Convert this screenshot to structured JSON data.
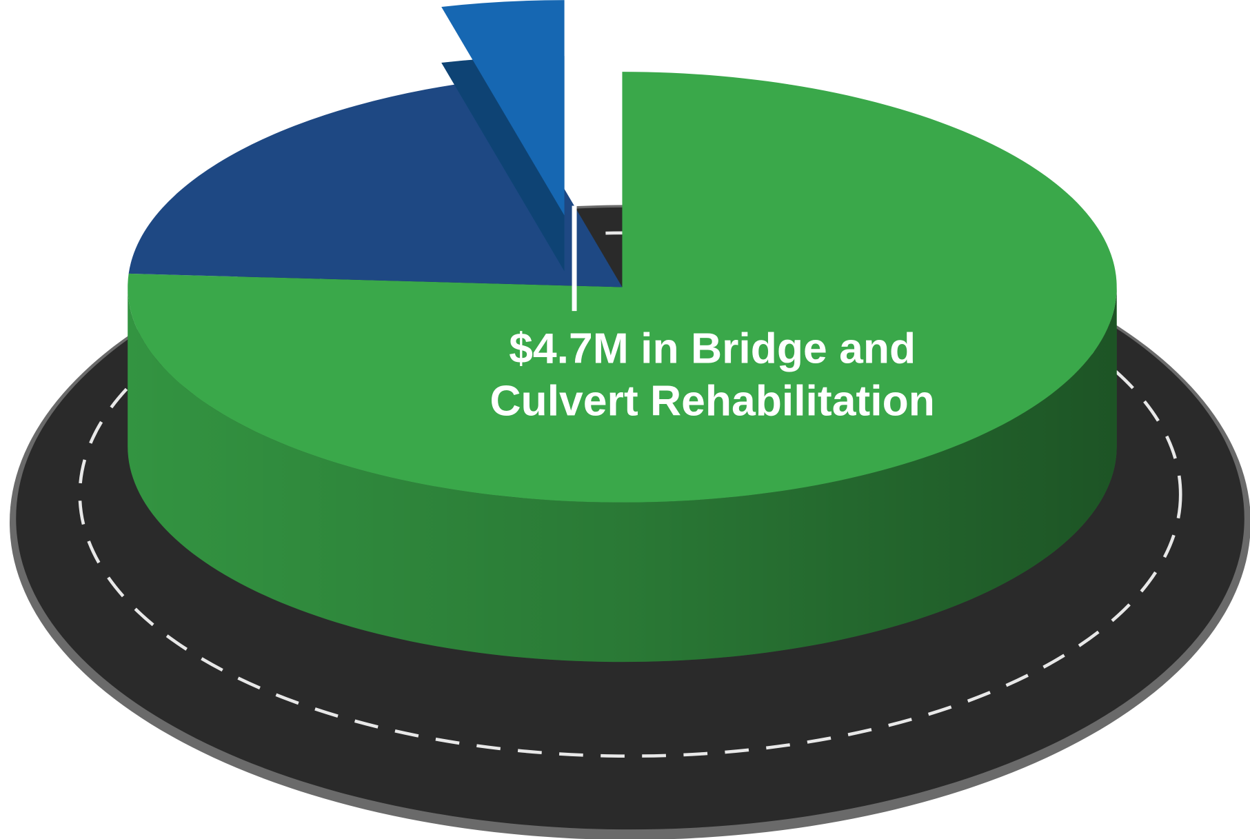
{
  "chart_data": {
    "type": "pie",
    "values": [
      76,
      20,
      4
    ],
    "colors": [
      "#3aa84a",
      "#1e4883",
      "#1667b2"
    ],
    "exploded": [
      false,
      false,
      true
    ],
    "annotation": [
      "$4.7M in Bridge and",
      "Culvert Rehabilitation"
    ]
  }
}
